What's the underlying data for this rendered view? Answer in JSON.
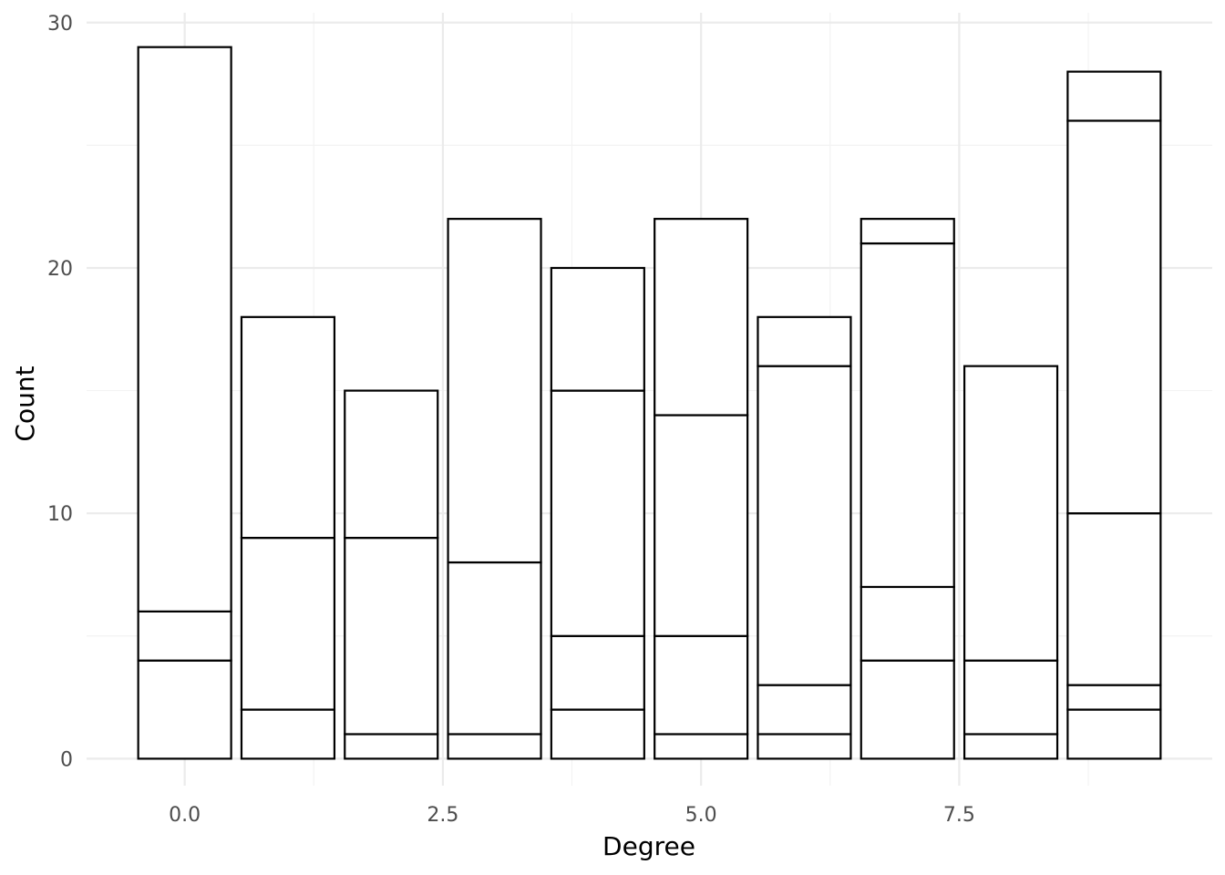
{
  "chart_data": {
    "type": "bar",
    "stacked": true,
    "xlabel": "Degree",
    "ylabel": "Count",
    "xlim": [
      -0.95,
      9.95
    ],
    "ylim": [
      -1.1,
      30.4
    ],
    "x_ticks": [
      0,
      2.5,
      5,
      7.5
    ],
    "x_tick_labels": [
      "0.0",
      "2.5",
      "5.0",
      "7.5"
    ],
    "x_minor_ticks": [
      1.25,
      3.75,
      6.25,
      8.75
    ],
    "y_ticks": [
      0,
      10,
      20,
      30
    ],
    "y_tick_labels": [
      "0",
      "10",
      "20",
      "30"
    ],
    "y_minor_ticks": [
      5,
      15,
      25
    ],
    "bar_width": 0.9,
    "grid": true,
    "legend": "none",
    "colors": {
      "fill": "#ffffff",
      "outline": "#000000",
      "grid": "#ebebeb"
    },
    "bars": [
      {
        "x": 0,
        "boundaries": [
          4,
          6,
          29
        ]
      },
      {
        "x": 1,
        "boundaries": [
          2,
          9,
          18
        ]
      },
      {
        "x": 2,
        "boundaries": [
          1,
          9,
          15
        ]
      },
      {
        "x": 3,
        "boundaries": [
          1,
          8,
          22
        ]
      },
      {
        "x": 4,
        "boundaries": [
          2,
          5,
          15,
          20
        ]
      },
      {
        "x": 5,
        "boundaries": [
          1,
          5,
          14,
          22
        ]
      },
      {
        "x": 6,
        "boundaries": [
          1,
          3,
          16,
          18
        ]
      },
      {
        "x": 7,
        "boundaries": [
          4,
          7,
          21,
          22
        ]
      },
      {
        "x": 8,
        "boundaries": [
          1,
          4,
          16
        ]
      },
      {
        "x": 9,
        "boundaries": [
          2,
          3,
          10,
          26,
          28
        ]
      }
    ]
  }
}
